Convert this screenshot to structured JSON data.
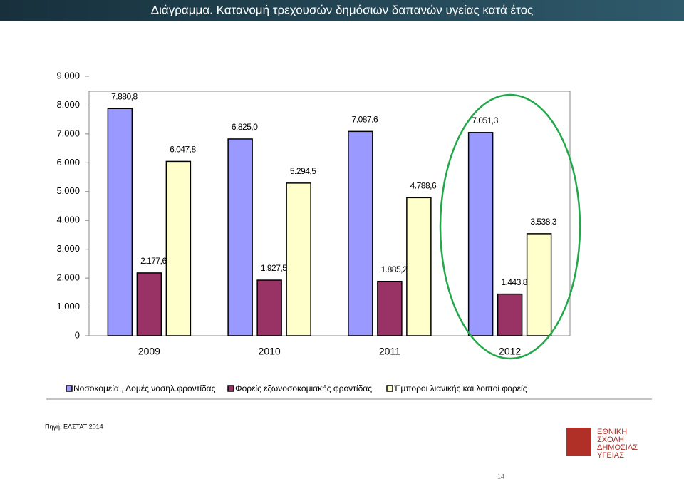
{
  "header": {
    "title": "Διάγραμμα. Κατανομή τρεχουσών δημόσιων δαπανών υγείας κατά έτος"
  },
  "chart_data": {
    "type": "bar",
    "categories": [
      "2009",
      "2010",
      "2011",
      "2012"
    ],
    "series": [
      {
        "name": "Νοσοκομεία , Δομές νοσηλ.φροντίδας",
        "color": "#9999ff",
        "values": [
          7880.8,
          6825.0,
          7087.6,
          7051.3
        ],
        "value_labels": [
          "7.880,8",
          "6.825,0",
          "7.087,6",
          "7.051,3"
        ]
      },
      {
        "name": "Φορείς εξωνοσοκομιακής φροντίδας",
        "color": "#993366",
        "values": [
          2177.6,
          1927.5,
          1885.2,
          1443.8
        ],
        "value_labels": [
          "2.177,6",
          "1.927,5",
          "1.885,2",
          "1.443,8"
        ]
      },
      {
        "name": "Έμποροι λιανικής και λοιποί φορείς",
        "color": "#ffffcc",
        "values": [
          6047.8,
          5294.5,
          4788.6,
          3538.3
        ],
        "value_labels": [
          "6.047,8",
          "5.294,5",
          "4.788,6",
          "3.538,3"
        ]
      }
    ],
    "ylim": [
      0,
      9000
    ],
    "yticks": [
      0,
      {
        "value": 1000,
        "label": "1.000"
      },
      {
        "value": 2000,
        "label": "2.000"
      },
      {
        "value": 3000,
        "label": "3.000"
      },
      {
        "value": 4000,
        "label": "4.000"
      },
      {
        "value": 5000,
        "label": "5.000"
      },
      {
        "value": 6000,
        "label": "6.000"
      },
      {
        "value": 7000,
        "label": "7.000"
      },
      {
        "value": 8000,
        "label": "8.000"
      },
      {
        "value": 9000,
        "label": "9.000"
      }
    ],
    "legend": "bottom"
  },
  "source": "Πηγή: ΕΛΣΤΑΤ 2014",
  "logo": {
    "line1": "ΕΘΝΙΚΗ",
    "line2": "ΣΧΟΛΗ",
    "line3": "ΔΗΜΟΣΙΑΣ",
    "line4": "ΥΓΕΙΑΣ"
  },
  "page_number": "14"
}
